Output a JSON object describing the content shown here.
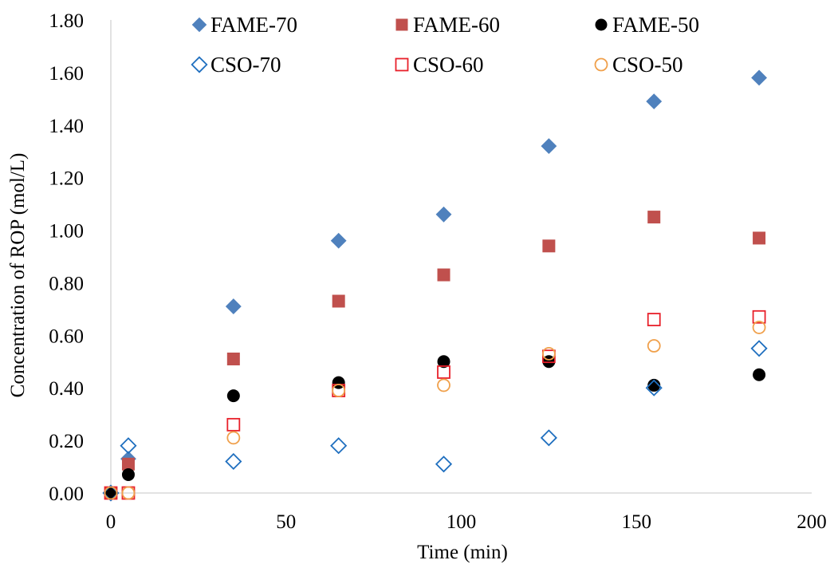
{
  "chart_data": {
    "type": "scatter",
    "title": "",
    "xlabel": "Time (min)",
    "ylabel": "Concentration of ROP (mol/L)",
    "xlim": [
      0,
      200
    ],
    "ylim": [
      0,
      1.8
    ],
    "xticks": [
      "0",
      "50",
      "100",
      "150",
      "200"
    ],
    "yticks": [
      "0.00",
      "0.20",
      "0.40",
      "0.60",
      "0.80",
      "1.00",
      "1.20",
      "1.40",
      "1.60",
      "1.80"
    ],
    "grid": false,
    "legend_position": "top",
    "x": [
      0,
      5,
      35,
      65,
      95,
      125,
      155,
      185
    ],
    "series": [
      {
        "name": "FAME-70",
        "marker": "diamond",
        "filled": true,
        "color": "#4F81BD",
        "values": [
          0,
          0.13,
          0.71,
          0.96,
          1.06,
          1.32,
          1.49,
          1.58
        ]
      },
      {
        "name": "FAME-60",
        "marker": "square",
        "filled": true,
        "color": "#C0504D",
        "values": [
          0,
          0.11,
          0.51,
          0.73,
          0.83,
          0.94,
          1.05,
          0.97
        ]
      },
      {
        "name": "FAME-50",
        "marker": "circle",
        "filled": true,
        "color": "#000000",
        "values": [
          0,
          0.07,
          0.37,
          0.42,
          0.5,
          0.5,
          0.41,
          0.45
        ]
      },
      {
        "name": "CSO-70",
        "marker": "diamond",
        "filled": false,
        "color": "#1F6FBF",
        "values": [
          0,
          0.18,
          0.12,
          0.18,
          0.11,
          0.21,
          0.4,
          0.55
        ]
      },
      {
        "name": "CSO-60",
        "marker": "square",
        "filled": false,
        "color": "#E8202A",
        "values": [
          0,
          0,
          0.26,
          0.39,
          0.46,
          0.52,
          0.66,
          0.67
        ]
      },
      {
        "name": "CSO-50",
        "marker": "circle",
        "filled": false,
        "color": "#F0A04B",
        "values": [
          0,
          0,
          0.21,
          0.39,
          0.41,
          0.53,
          0.56,
          0.63
        ]
      }
    ]
  }
}
